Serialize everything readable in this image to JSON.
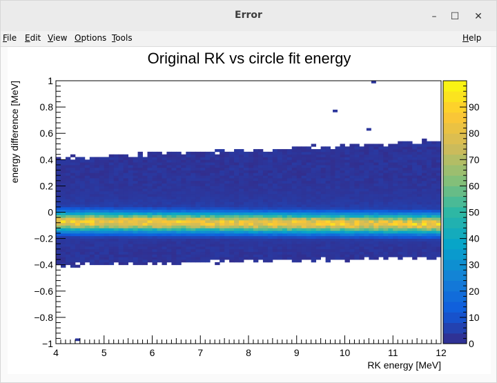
{
  "window": {
    "title": "Error"
  },
  "menu": [
    {
      "label": "File",
      "mnemonic": "F",
      "rest": "ile"
    },
    {
      "label": "Edit",
      "mnemonic": "E",
      "rest": "dit"
    },
    {
      "label": "View",
      "mnemonic": "V",
      "rest": "iew"
    },
    {
      "label": "Options",
      "mnemonic": "O",
      "rest": "ptions"
    },
    {
      "label": "Tools",
      "mnemonic": "T",
      "rest": "ools"
    }
  ],
  "help": {
    "label": "Help",
    "mnemonic": "H",
    "rest": "elp"
  },
  "colors": {
    "titlebar": "#ebebeb",
    "palette": [
      "#352a87",
      "#0f5cdd",
      "#1481d6",
      "#06a4ca",
      "#2eb7a4",
      "#87bf77",
      "#d1bb59",
      "#fec832",
      "#f9fb0e"
    ]
  },
  "chart_data": {
    "type": "heatmap",
    "title": "Original RK vs circle fit energy",
    "xlabel": "RK energy [MeV]",
    "ylabel": "energy difference [MeV]",
    "xlim": [
      4,
      12
    ],
    "ylim": [
      -1,
      1
    ],
    "x_ticks": [
      "4",
      "5",
      "6",
      "7",
      "8",
      "9",
      "10",
      "11",
      "12"
    ],
    "y_ticks": [
      "−1",
      "−0.8",
      "−0.6",
      "−0.4",
      "−0.2",
      "0",
      "0.2",
      "0.4",
      "0.6",
      "0.8",
      "1"
    ],
    "z_range": [
      0,
      100
    ],
    "z_ticks": [
      "0",
      "10",
      "20",
      "30",
      "40",
      "50",
      "60",
      "70",
      "80",
      "90"
    ],
    "bins": {
      "nx": 80,
      "ny": 100
    },
    "band": {
      "center_at_x4": -0.07,
      "center_at_x12": -0.09,
      "sigma": 0.05,
      "peak_counts": 95,
      "upper_edge_at_x4": 0.39,
      "upper_edge_at_x12": 0.52,
      "lower_edge_at_x4": -0.39,
      "lower_edge_at_x12": -0.33
    },
    "outliers": [
      {
        "x": 10.6,
        "y": 0.99
      },
      {
        "x": 9.8,
        "y": 0.77
      },
      {
        "x": 10.5,
        "y": 0.63
      },
      {
        "x": 4.45,
        "y": -0.97
      }
    ]
  }
}
